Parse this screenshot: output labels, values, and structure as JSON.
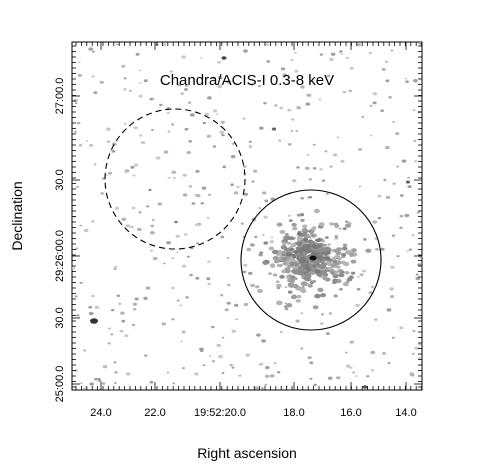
{
  "figure": {
    "title": "Chandra/ACIS-I 0.3-8 keV",
    "xlabel": "Right ascension",
    "ylabel": "Declination",
    "x_ticks": [
      "24.0",
      "22.0",
      "19:52:20.0",
      "18.0",
      "16.0",
      "14.0"
    ],
    "y_ticks": [
      "25:00.0",
      "30.0",
      "29:26:00.0",
      "30.0",
      "27:00.0"
    ],
    "regions": [
      {
        "name": "source-region",
        "style": "solid"
      },
      {
        "name": "background-region",
        "style": "dashed"
      }
    ],
    "colors": {
      "counts": "#555555",
      "background": "#ffffff",
      "frame": "#000000"
    }
  }
}
